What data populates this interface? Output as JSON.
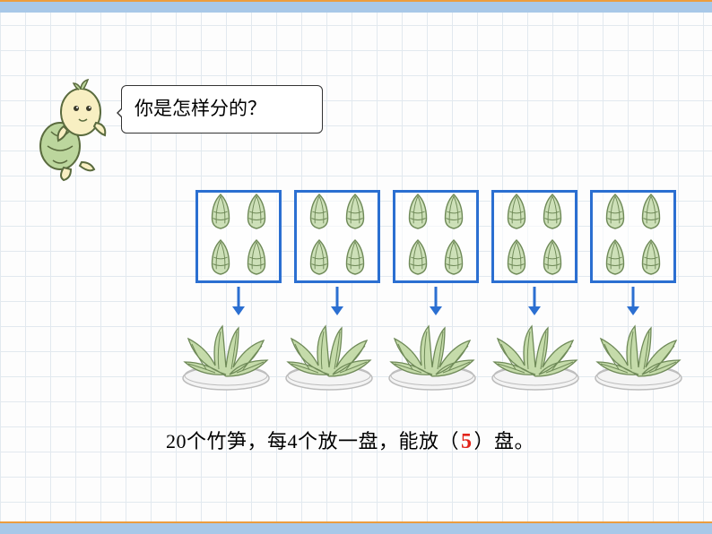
{
  "bubble_text": "你是怎样分的？",
  "sentence": {
    "p1": "20个竹笋，每4个放一盘，能放（",
    "answer": "5",
    "p2": "）盘。"
  },
  "diagram": {
    "type": "infographic",
    "group_count": 5,
    "items_per_group": 4,
    "box_border_color": "#2b6fd1",
    "box_border_width": 3,
    "arrow_color": "#2b6fd1",
    "shoot_fill": "#cde0b8",
    "shoot_stroke": "#6f8a58",
    "plate_leaf_fill": "#c5dbaa",
    "plate_leaf_stroke": "#6f8a58",
    "plate_dish_fill": "#f4f4f4",
    "plate_dish_stroke": "#bcbcbc",
    "mascot_body": "#f8efc2",
    "mascot_shell": "#bcd69d",
    "mascot_stroke": "#5a6b3e",
    "background_color": "#fdfdfd",
    "grid_color": "#e2e9ef",
    "accent_bar": "#a8c8e8",
    "accent_line": "#ec9d3e"
  }
}
